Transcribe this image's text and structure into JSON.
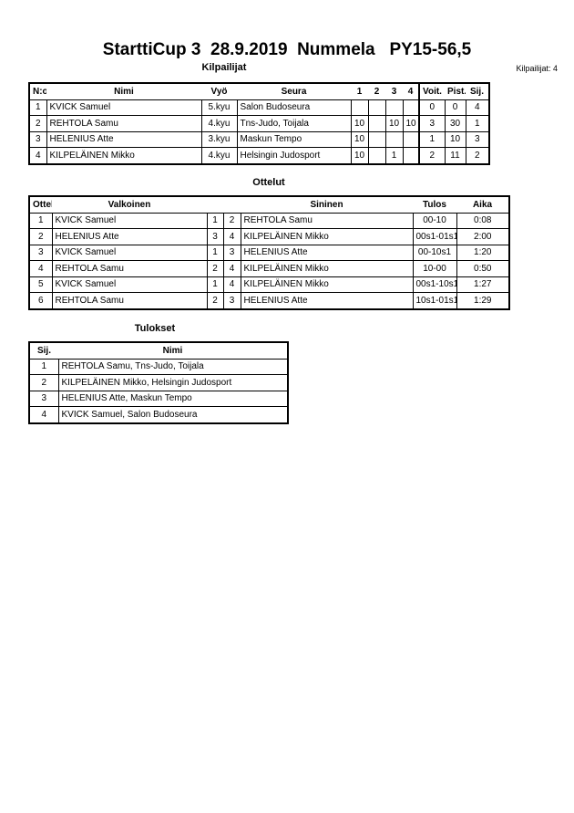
{
  "title": "StarttiCup 3  28.9.2019  Nummela   PY15-56,5",
  "competitors": {
    "heading": "Kilpailijat",
    "count_label": "Kilpailijat: 4",
    "columns": [
      "N:o",
      "Nimi",
      "Vyö",
      "Seura",
      "1",
      "2",
      "3",
      "4",
      "Voit.",
      "Pist.",
      "Sij."
    ],
    "rows": [
      [
        "1",
        "KVICK Samuel",
        "5.kyu",
        "Salon Budoseura",
        "",
        "",
        "",
        "",
        "0",
        "0",
        "4"
      ],
      [
        "2",
        "REHTOLA Samu",
        "4.kyu",
        "Tns-Judo, Toijala",
        "10",
        "",
        "10",
        "10",
        "3",
        "30",
        "1"
      ],
      [
        "3",
        "HELENIUS Atte",
        "3.kyu",
        "Maskun Tempo",
        "10",
        "",
        "",
        "",
        "1",
        "10",
        "3"
      ],
      [
        "4",
        "KILPELÄINEN Mikko",
        "4.kyu",
        "Helsingin Judosport",
        "10",
        "",
        "1",
        "",
        "2",
        "11",
        "2"
      ]
    ]
  },
  "matches": {
    "heading": "Ottelut",
    "columns": [
      "Ottelu",
      "Valkoinen",
      "",
      "",
      "Sininen",
      "Tulos",
      "Aika"
    ],
    "rows": [
      [
        "1",
        "KVICK Samuel",
        "1",
        "2",
        "REHTOLA Samu",
        "00-10",
        "0:08"
      ],
      [
        "2",
        "HELENIUS Atte",
        "3",
        "4",
        "KILPELÄINEN Mikko",
        "00s1-01s1",
        "2:00"
      ],
      [
        "3",
        "KVICK Samuel",
        "1",
        "3",
        "HELENIUS Atte",
        "00-10s1",
        "1:20"
      ],
      [
        "4",
        "REHTOLA Samu",
        "2",
        "4",
        "KILPELÄINEN Mikko",
        "10-00",
        "0:50"
      ],
      [
        "5",
        "KVICK Samuel",
        "1",
        "4",
        "KILPELÄINEN Mikko",
        "00s1-10s1",
        "1:27"
      ],
      [
        "6",
        "REHTOLA Samu",
        "2",
        "3",
        "HELENIUS Atte",
        "10s1-01s1",
        "1:29"
      ]
    ]
  },
  "results": {
    "heading": "Tulokset",
    "columns": [
      "Sij.",
      "Nimi"
    ],
    "rows": [
      [
        "1",
        "REHTOLA Samu, Tns-Judo, Toijala"
      ],
      [
        "2",
        "KILPELÄINEN Mikko, Helsingin Judosport"
      ],
      [
        "3",
        "HELENIUS Atte, Maskun Tempo"
      ],
      [
        "4",
        "KVICK Samuel, Salon Budoseura"
      ]
    ]
  }
}
